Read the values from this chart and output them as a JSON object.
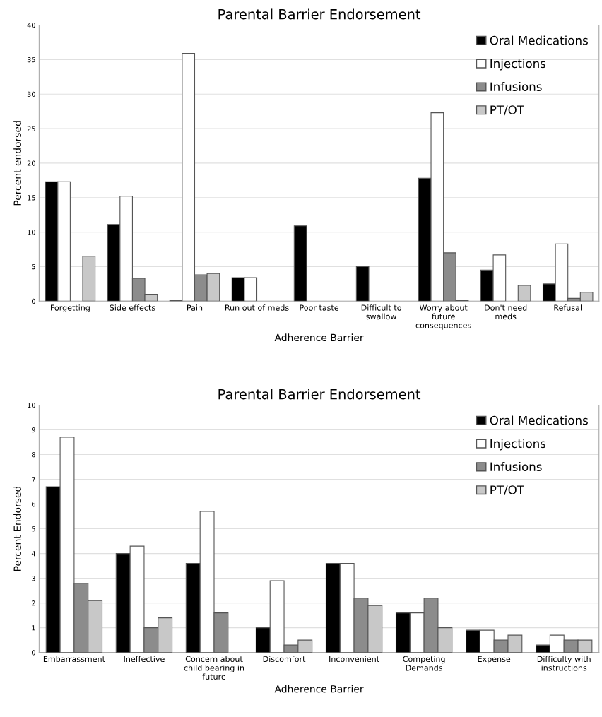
{
  "chart_data": [
    {
      "type": "bar",
      "title": "Parental Barrier Endorsement",
      "xlabel": "Adherence Barrier",
      "ylabel": "Percent endorsed",
      "categories": [
        "Forgetting",
        "Side effects",
        "Pain",
        "Run out of meds",
        "Poor taste",
        "Difficult to\nswallow",
        "Worry about\nfuture\nconsequences",
        "Don't need\nmeds",
        "Refusal"
      ],
      "series": [
        {
          "name": "Oral Medications",
          "color": "#000000",
          "values": [
            17.3,
            11.1,
            0.1,
            3.4,
            10.9,
            5.0,
            17.8,
            4.5,
            2.5
          ]
        },
        {
          "name": "Injections",
          "color": "#ffffff",
          "values": [
            17.3,
            15.2,
            35.9,
            3.4,
            null,
            null,
            27.3,
            6.7,
            8.3
          ]
        },
        {
          "name": "Infusions",
          "color": "#8c8c8c",
          "values": [
            null,
            3.3,
            3.8,
            null,
            null,
            null,
            7.0,
            null,
            0.4
          ]
        },
        {
          "name": "PT/OT",
          "color": "#c8c8c8",
          "values": [
            6.5,
            1.0,
            4.0,
            null,
            null,
            null,
            0.1,
            2.3,
            1.3
          ]
        }
      ],
      "ylim": [
        0,
        40
      ],
      "yticks": [
        0,
        5,
        10,
        15,
        20,
        25,
        30,
        35,
        40
      ],
      "grid": "y",
      "legend": "top right"
    },
    {
      "type": "bar",
      "title": "Parental Barrier Endorsement",
      "xlabel": "Adherence Barrier",
      "ylabel": "Percent Endorsed",
      "categories": [
        "Embarrassment",
        "Ineffective",
        "Concern about\nchild bearing in\nfuture",
        "Discomfort",
        "Inconvenient",
        "Competing\nDemands",
        "Expense",
        "Difficulty with\ninstructions"
      ],
      "series": [
        {
          "name": "Oral Medications",
          "color": "#000000",
          "values": [
            6.7,
            4.0,
            3.6,
            1.0,
            3.6,
            1.6,
            0.9,
            0.3
          ]
        },
        {
          "name": "Injections",
          "color": "#ffffff",
          "values": [
            8.7,
            4.3,
            5.7,
            2.9,
            3.6,
            1.6,
            0.9,
            0.7
          ]
        },
        {
          "name": "Infusions",
          "color": "#8c8c8c",
          "values": [
            2.8,
            1.0,
            1.6,
            0.3,
            2.2,
            2.2,
            0.5,
            0.5
          ]
        },
        {
          "name": "PT/OT",
          "color": "#c8c8c8",
          "values": [
            2.1,
            1.4,
            null,
            0.5,
            1.9,
            1.0,
            0.7,
            0.5
          ]
        }
      ],
      "ylim": [
        0,
        10
      ],
      "yticks": [
        0,
        1,
        2,
        3,
        4,
        5,
        6,
        7,
        8,
        9,
        10
      ],
      "grid": "y",
      "legend": "top right"
    }
  ]
}
